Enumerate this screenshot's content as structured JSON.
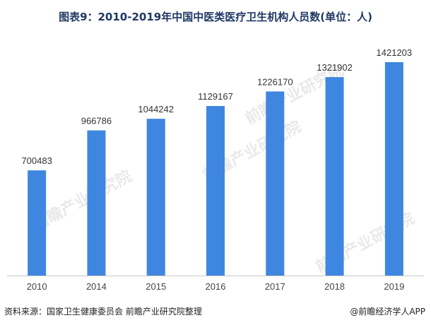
{
  "chart_data": {
    "type": "bar",
    "title": "图表9：2010-2019年中国中医类医疗卫生机构人员数(单位：人)",
    "categories": [
      "2010",
      "2014",
      "2015",
      "2016",
      "2017",
      "2018",
      "2019"
    ],
    "values": [
      700483,
      966786,
      1044242,
      1129167,
      1226170,
      1321902,
      1421203
    ],
    "data_labels": [
      "700483",
      "966786",
      "1044242",
      "1129167",
      "1226170",
      "1321902",
      "1421203"
    ],
    "ylim": [
      0,
      1600000
    ],
    "grid": false,
    "legend": "none",
    "bar_color": "#3f86e0"
  },
  "footer": {
    "source": "资料来源：国家卫生健康委员会 前瞻产业研究院整理",
    "brand": "@前瞻经济学人APP"
  },
  "watermark": {
    "text": "前瞻产业研究院"
  }
}
